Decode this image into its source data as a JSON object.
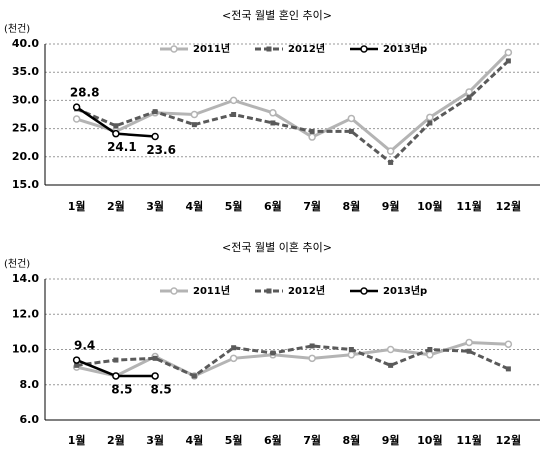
{
  "chart_data": [
    {
      "type": "line",
      "title": "<전국 월별 혼인 추이>",
      "unit": "(천건)",
      "categories": [
        "1월",
        "2월",
        "3월",
        "4월",
        "5월",
        "6월",
        "7월",
        "8월",
        "9월",
        "10월",
        "11월",
        "12월"
      ],
      "series": [
        {
          "name": "2011년",
          "color": "#b4b4b4",
          "values": [
            26.7,
            24.5,
            27.8,
            27.5,
            30.0,
            27.8,
            23.5,
            26.8,
            21.0,
            27.0,
            31.5,
            38.5
          ]
        },
        {
          "name": "2012년",
          "color": "#5a5a5a",
          "values": [
            28.5,
            25.5,
            28.0,
            25.7,
            27.5,
            26.0,
            24.5,
            24.5,
            19.0,
            26.0,
            30.5,
            37.0
          ]
        },
        {
          "name": "2013년p",
          "color": "#000000",
          "values": [
            28.8,
            24.1,
            23.6,
            null,
            null,
            null,
            null,
            null,
            null,
            null,
            null,
            null
          ]
        }
      ],
      "ylim": [
        15,
        40
      ],
      "yticks": [
        {
          "value": 15,
          "label": "15.0"
        },
        {
          "value": 20,
          "label": "20.0"
        },
        {
          "value": 25,
          "label": "25.0"
        },
        {
          "value": 30,
          "label": "30.0"
        },
        {
          "value": 35,
          "label": "35.0"
        },
        {
          "value": 40,
          "label": "40.0"
        }
      ],
      "grid": true
    },
    {
      "type": "line",
      "title": "<전국 월별 이혼 추이>",
      "unit": "(천건)",
      "categories": [
        "1월",
        "2월",
        "3월",
        "4월",
        "5월",
        "6월",
        "7월",
        "8월",
        "9월",
        "10월",
        "11월",
        "12월"
      ],
      "series": [
        {
          "name": "2011년",
          "color": "#b4b4b4",
          "values": [
            9.0,
            8.5,
            9.6,
            8.5,
            9.5,
            9.7,
            9.5,
            9.7,
            10.0,
            9.7,
            10.4,
            10.3
          ]
        },
        {
          "name": "2012년",
          "color": "#5a5a5a",
          "values": [
            9.1,
            9.4,
            9.5,
            8.5,
            10.1,
            9.8,
            10.2,
            10.0,
            9.1,
            10.0,
            9.9,
            8.9
          ]
        },
        {
          "name": "2013년p",
          "color": "#000000",
          "values": [
            9.4,
            8.5,
            8.5,
            null,
            null,
            null,
            null,
            null,
            null,
            null,
            null,
            null
          ]
        }
      ],
      "ylim": [
        6,
        14
      ],
      "yticks": [
        {
          "value": 6,
          "label": "6.0"
        },
        {
          "value": 8,
          "label": "8.0"
        },
        {
          "value": 10,
          "label": "10.0"
        },
        {
          "value": 12,
          "label": "12.0"
        },
        {
          "value": 14,
          "label": "14.0"
        }
      ],
      "grid": true
    }
  ]
}
